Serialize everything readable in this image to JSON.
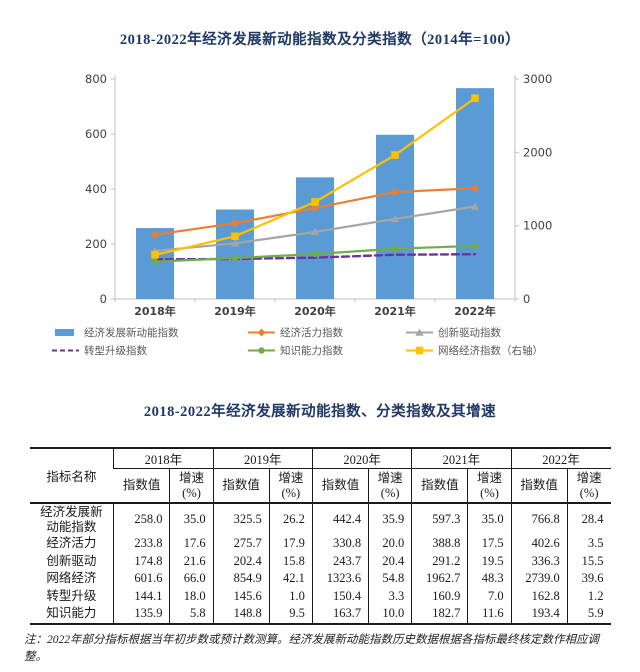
{
  "page": {
    "chart_title": "2018-2022年经济发展新动能指数及分类指数（2014年=100）",
    "table_title": "2018-2022年经济发展新动能指数、分类指数及其增速",
    "note": "注：2022年部分指标根据当年初步数或预计数测算。经济发展新动能指数历史数据根据各指标最终核定数作相应调整。"
  },
  "chart_data": {
    "type": "bar",
    "subtype": "combo-bar-line-dual-axis",
    "title": "2018-2022年经济发展新动能指数及分类指数（2014年=100）",
    "categories": [
      "2018年",
      "2019年",
      "2020年",
      "2021年",
      "2022年"
    ],
    "series": [
      {
        "name": "经济发展新动能指数",
        "type": "bar",
        "axis": "left",
        "color": "#5B9BD5",
        "marker": "none",
        "dash": false,
        "values": [
          258.0,
          325.5,
          442.4,
          597.3,
          766.8
        ]
      },
      {
        "name": "经济活力指数",
        "type": "line",
        "axis": "left",
        "color": "#ED7D31",
        "marker": "diamond",
        "dash": false,
        "values": [
          233.8,
          275.7,
          330.8,
          388.8,
          402.6
        ]
      },
      {
        "name": "创新驱动指数",
        "type": "line",
        "axis": "left",
        "color": "#A5A5A5",
        "marker": "triangle",
        "dash": false,
        "values": [
          174.8,
          202.4,
          243.7,
          291.2,
          336.3
        ]
      },
      {
        "name": "转型升级指数",
        "type": "line",
        "axis": "left",
        "color": "#7030A0",
        "marker": "none",
        "dash": true,
        "values": [
          144.1,
          145.6,
          150.4,
          160.9,
          162.8
        ]
      },
      {
        "name": "知识能力指数",
        "type": "line",
        "axis": "left",
        "color": "#70AD47",
        "marker": "circle",
        "dash": false,
        "values": [
          135.9,
          148.8,
          163.7,
          182.7,
          193.4
        ]
      },
      {
        "name": "网络经济指数（右轴）",
        "type": "line",
        "axis": "right",
        "color": "#FFC000",
        "marker": "square",
        "dash": false,
        "values": [
          601.6,
          854.9,
          1323.6,
          1962.7,
          2739.0
        ]
      }
    ],
    "left_axis": {
      "min": 0,
      "max": 800,
      "step": 200,
      "ticks": [
        0,
        200,
        400,
        600,
        800
      ]
    },
    "right_axis": {
      "min": 0,
      "max": 3000,
      "step": 1000,
      "ticks": [
        0,
        1000,
        2000,
        3000
      ]
    },
    "grid": false,
    "legend_position": "bottom",
    "axis_line_color": "#BFBFBF",
    "tick_label_color": "#404040",
    "legend_text_color": "#595959"
  },
  "table": {
    "corner_header": "指标名称",
    "year_headers": [
      "2018年",
      "2019年",
      "2020年",
      "2021年",
      "2022年"
    ],
    "sub_headers": {
      "index": "指数值",
      "growth": "增速\n(%)"
    },
    "rows": [
      {
        "label": "经济发展新\n动能指数",
        "cells": [
          "258.0",
          "35.0",
          "325.5",
          "26.2",
          "442.4",
          "35.9",
          "597.3",
          "35.0",
          "766.8",
          "28.4"
        ]
      },
      {
        "label": "经济活力",
        "cells": [
          "233.8",
          "17.6",
          "275.7",
          "17.9",
          "330.8",
          "20.0",
          "388.8",
          "17.5",
          "402.6",
          "3.5"
        ]
      },
      {
        "label": "创新驱动",
        "cells": [
          "174.8",
          "21.6",
          "202.4",
          "15.8",
          "243.7",
          "20.4",
          "291.2",
          "19.5",
          "336.3",
          "15.5"
        ]
      },
      {
        "label": "网络经济",
        "cells": [
          "601.6",
          "66.0",
          "854.9",
          "42.1",
          "1323.6",
          "54.8",
          "1962.7",
          "48.3",
          "2739.0",
          "39.6"
        ]
      },
      {
        "label": "转型升级",
        "cells": [
          "144.1",
          "18.0",
          "145.6",
          "1.0",
          "150.4",
          "3.3",
          "160.9",
          "7.0",
          "162.8",
          "1.2"
        ]
      },
      {
        "label": "知识能力",
        "cells": [
          "135.9",
          "5.8",
          "148.8",
          "9.5",
          "163.7",
          "10.0",
          "182.7",
          "11.6",
          "193.4",
          "5.9"
        ]
      }
    ]
  }
}
